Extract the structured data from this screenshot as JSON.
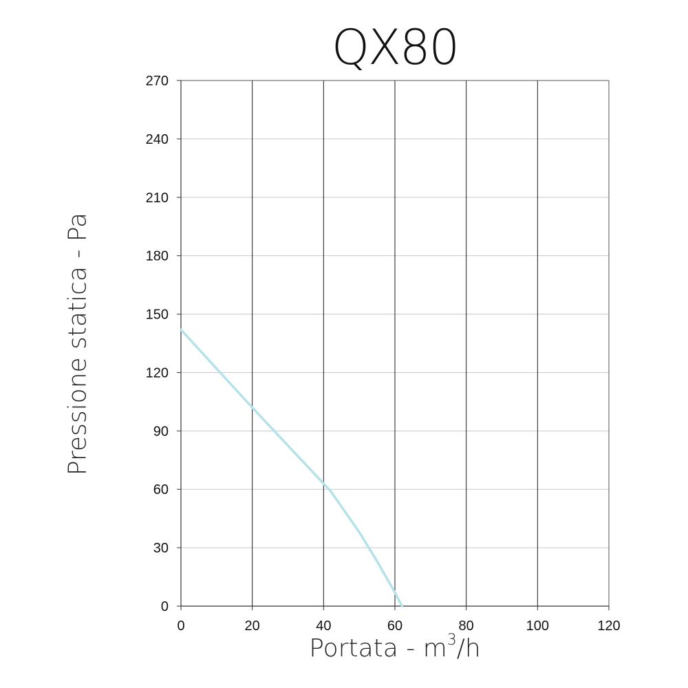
{
  "chart_data": {
    "type": "line",
    "title": "QX80",
    "xlabel": {
      "before": "Portata - m",
      "sup": "3",
      "after": "/h"
    },
    "ylabel": "Pressione statica - Pa",
    "xlim": [
      0,
      120
    ],
    "ylim": [
      0,
      270
    ],
    "xticks": [
      0,
      20,
      40,
      60,
      80,
      100,
      120
    ],
    "yticks": [
      0,
      30,
      60,
      90,
      120,
      150,
      180,
      210,
      240,
      270
    ],
    "grid": true,
    "series": [
      {
        "color": "#b5e2e8",
        "x": [
          0,
          20,
          41,
          42,
          50,
          55,
          60,
          62
        ],
        "y": [
          142,
          102,
          61,
          59,
          38,
          23,
          7,
          0
        ]
      }
    ]
  }
}
